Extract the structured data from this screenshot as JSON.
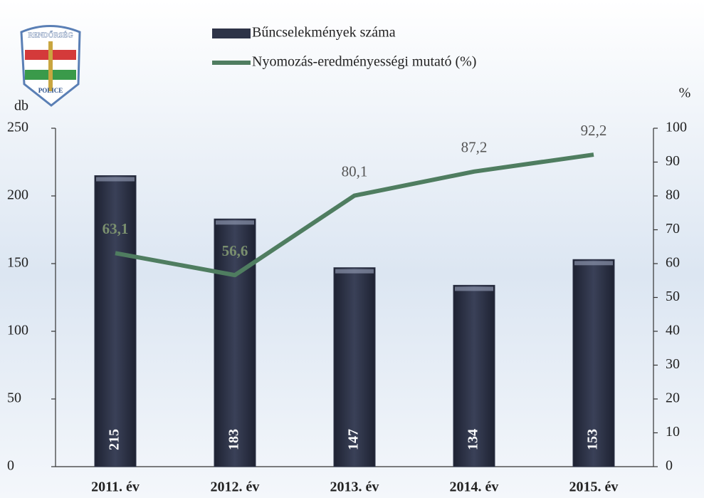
{
  "logo": {
    "top": "RENDŐRSÉG",
    "bottom": "POLICE"
  },
  "chart_data": {
    "type": "bar",
    "ylabel": "db",
    "y2label": "%",
    "categories": [
      "2011. év",
      "2012. év",
      "2013. év",
      "2014. év",
      "2015. év"
    ],
    "series": [
      {
        "name": "Bűncselekmények száma",
        "type": "bar",
        "color": "#2d3347",
        "values": [
          215,
          183,
          147,
          134,
          153
        ]
      },
      {
        "name": "Nyomozás-eredményességi mutató (%)",
        "type": "line",
        "axis": "y2",
        "color": "#4f7d60",
        "values": [
          63.1,
          56.6,
          80.1,
          87.2,
          92.2
        ],
        "value_labels": [
          "63,1",
          "56,6",
          "80,1",
          "87,2",
          "92,2"
        ]
      }
    ],
    "ylim": [
      0,
      250
    ],
    "yticks": [
      0,
      50,
      100,
      150,
      200,
      250
    ],
    "y2lim": [
      0,
      100
    ],
    "y2ticks": [
      0,
      10,
      20,
      30,
      40,
      50,
      60,
      70,
      80,
      90,
      100
    ]
  }
}
